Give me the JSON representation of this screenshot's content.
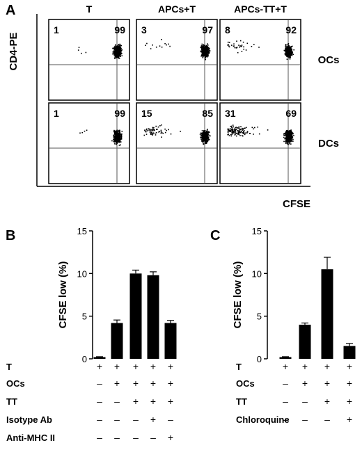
{
  "panel_a": {
    "letter": "A",
    "y_axis_label": "CD4-PE",
    "x_axis_label": "CFSE",
    "columns": [
      "T",
      "APCs+T",
      "APCs-TT+T"
    ],
    "rows": [
      "OCs",
      "DCs"
    ],
    "plots": [
      {
        "row": 0,
        "col": 0,
        "left_pct": "1",
        "right_pct": "99"
      },
      {
        "row": 0,
        "col": 1,
        "left_pct": "3",
        "right_pct": "97"
      },
      {
        "row": 0,
        "col": 2,
        "left_pct": "8",
        "right_pct": "92"
      },
      {
        "row": 1,
        "col": 0,
        "left_pct": "1",
        "right_pct": "99"
      },
      {
        "row": 1,
        "col": 1,
        "left_pct": "15",
        "right_pct": "85"
      },
      {
        "row": 1,
        "col": 2,
        "left_pct": "31",
        "right_pct": "69"
      }
    ]
  },
  "chart_data": [
    {
      "type": "bar",
      "panel": "B",
      "ylabel": "CFSE low (%)",
      "ylim": [
        0,
        15
      ],
      "yticks": [
        "0",
        "5",
        "10",
        "15"
      ],
      "values": [
        0.2,
        4.2,
        10.0,
        9.8,
        4.2
      ],
      "errors": [
        0.05,
        0.35,
        0.4,
        0.4,
        0.3
      ],
      "conditions": [
        {
          "label": "T",
          "marks": [
            "+",
            "+",
            "+",
            "+",
            "+"
          ]
        },
        {
          "label": "OCs",
          "marks": [
            "–",
            "+",
            "+",
            "+",
            "+"
          ]
        },
        {
          "label": "TT",
          "marks": [
            "–",
            "–",
            "+",
            "+",
            "+"
          ]
        },
        {
          "label": "Isotype Ab",
          "marks": [
            "–",
            "–",
            "–",
            "+",
            "–"
          ]
        },
        {
          "label": "Anti-MHC II",
          "marks": [
            "–",
            "–",
            "–",
            "–",
            "+"
          ]
        }
      ]
    },
    {
      "type": "bar",
      "panel": "C",
      "ylabel": "CFSE low (%)",
      "ylim": [
        0,
        15
      ],
      "yticks": [
        "0",
        "5",
        "10",
        "15"
      ],
      "values": [
        0.2,
        4.0,
        10.5,
        1.5
      ],
      "errors": [
        0.05,
        0.2,
        1.4,
        0.3
      ],
      "conditions": [
        {
          "label": "T",
          "marks": [
            "+",
            "+",
            "+",
            "+"
          ]
        },
        {
          "label": "OCs",
          "marks": [
            "–",
            "+",
            "+",
            "+"
          ]
        },
        {
          "label": "TT",
          "marks": [
            "–",
            "–",
            "+",
            "+"
          ]
        },
        {
          "label": "Chloroquine",
          "marks": [
            "–",
            "–",
            "–",
            "+"
          ]
        }
      ]
    }
  ]
}
